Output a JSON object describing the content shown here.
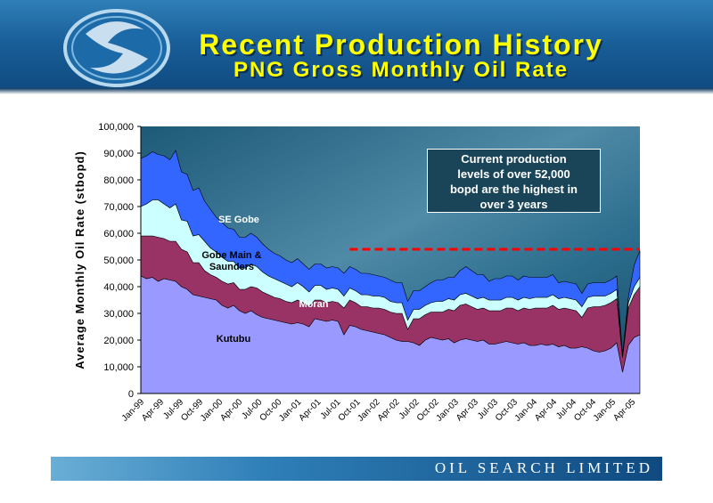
{
  "header": {
    "title": "Recent Production History",
    "subtitle": "PNG Gross Monthly Oil Rate"
  },
  "footer": {
    "company": "OIL SEARCH LIMITED"
  },
  "callout": {
    "lines": [
      "Current production",
      "levels of over 52,000",
      "bopd are the highest in",
      "over 3 years"
    ]
  },
  "colors": {
    "kutubu": "#9999ff",
    "moran": "#993366",
    "gobe_main": "#ccffff",
    "se_gobe": "#3366ff",
    "dashed_line": "#ff0000",
    "title": "#ffff00"
  },
  "chart_data": {
    "type": "area",
    "stacked": true,
    "title": "",
    "ylabel": "Average Monthly Oil Rate (stbopd)",
    "xlabel": "",
    "ylim": [
      0,
      100000
    ],
    "yticks": [
      "0",
      "10,000",
      "20,000",
      "30,000",
      "40,000",
      "50,000",
      "60,000",
      "70,000",
      "80,000",
      "90,000",
      "100,000"
    ],
    "x_tick_labels": [
      "Jan-99",
      "Apr-99",
      "Jul-99",
      "Oct-99",
      "Jan-00",
      "Apr-00",
      "Jul-00",
      "Oct-00",
      "Jan-01",
      "Apr-01",
      "Jul-01",
      "Oct-01",
      "Jan-02",
      "Apr-02",
      "Jul-02",
      "Oct-02",
      "Jan-03",
      "Apr-03",
      "Jul-03",
      "Oct-03",
      "Jan-04",
      "Apr-04",
      "Jul-04",
      "Oct-04",
      "Jan-05",
      "Apr-05"
    ],
    "reference_line": {
      "y": 54000,
      "style": "dashed"
    },
    "series_labels": [
      "Kutubu",
      "Moran",
      "Gobe Main & Saunders",
      "SE Gobe"
    ],
    "series": [
      {
        "name": "Kutubu",
        "values": [
          44000,
          43000,
          43500,
          42000,
          43000,
          42500,
          42000,
          40000,
          39000,
          37000,
          36500,
          36000,
          35500,
          35000,
          33000,
          32000,
          33000,
          31000,
          30000,
          31000,
          29500,
          28500,
          28000,
          27500,
          27000,
          26500,
          26000,
          26500,
          26000,
          25000,
          28000,
          27500,
          27000,
          27500,
          27000,
          22000,
          25500,
          25000,
          24000,
          23500,
          23000,
          22500,
          22000,
          21000,
          20000,
          19500,
          19500,
          19000,
          18000,
          20000,
          21000,
          20500,
          20000,
          20500,
          19000,
          20000,
          20500,
          20000,
          19500,
          20000,
          18500,
          18500,
          19000,
          19500,
          19000,
          18500,
          19000,
          18000,
          18000,
          18500,
          18000,
          18500,
          17500,
          18000,
          17000,
          17000,
          17500,
          17000,
          16000,
          15500,
          16000,
          17000,
          19000,
          8000,
          18000,
          21000,
          22000
        ]
      },
      {
        "name": "Moran",
        "values": [
          15000,
          16000,
          15500,
          16500,
          15000,
          14500,
          15000,
          14000,
          14000,
          12000,
          12500,
          10000,
          9000,
          8500,
          9000,
          9000,
          8500,
          8000,
          9000,
          9000,
          10000,
          9500,
          9000,
          8500,
          8500,
          8000,
          8000,
          8500,
          8000,
          7500,
          7000,
          7500,
          7000,
          7000,
          7000,
          10000,
          9500,
          9000,
          8500,
          9000,
          9000,
          9500,
          9500,
          9500,
          10000,
          10500,
          4500,
          9000,
          10000,
          9500,
          9500,
          10000,
          10500,
          11000,
          12000,
          13000,
          13000,
          12500,
          12000,
          12000,
          12500,
          12500,
          12000,
          12500,
          13000,
          12500,
          13000,
          13500,
          14000,
          13500,
          14000,
          14500,
          14000,
          14000,
          14500,
          14000,
          11000,
          15000,
          16500,
          17000,
          17000,
          17000,
          16500,
          5500,
          14000,
          16000,
          18000
        ]
      },
      {
        "name": "Gobe Main & Saunders",
        "values": [
          11000,
          12000,
          13500,
          14000,
          13000,
          12500,
          14000,
          11000,
          11500,
          10000,
          10500,
          11000,
          10000,
          9500,
          9000,
          8500,
          8000,
          8000,
          8000,
          8500,
          8000,
          7500,
          7000,
          7000,
          6500,
          6500,
          6000,
          6500,
          6000,
          5500,
          5500,
          5500,
          5000,
          5000,
          5000,
          4500,
          4500,
          4500,
          4500,
          4500,
          4500,
          4500,
          4500,
          4000,
          4000,
          4000,
          3500,
          3500,
          3500,
          3500,
          3500,
          4000,
          4000,
          4000,
          4000,
          4000,
          4000,
          4000,
          4000,
          4000,
          4000,
          4000,
          4000,
          4000,
          4000,
          4000,
          4000,
          4000,
          4000,
          4000,
          4000,
          4000,
          4000,
          4000,
          4000,
          4000,
          4000,
          4000,
          4000,
          4000,
          3500,
          3500,
          3500,
          500,
          2000,
          3000,
          3500
        ]
      },
      {
        "name": "SE Gobe",
        "values": [
          18000,
          18000,
          18000,
          17000,
          18000,
          18000,
          20000,
          18000,
          17500,
          17000,
          17500,
          15000,
          14500,
          13000,
          13000,
          12500,
          12000,
          11500,
          11500,
          11500,
          11000,
          10500,
          10000,
          9500,
          9500,
          9000,
          9000,
          9000,
          8500,
          8500,
          8000,
          8000,
          8000,
          8000,
          8000,
          8500,
          8000,
          8000,
          8000,
          8000,
          8000,
          7500,
          7500,
          8000,
          7500,
          7500,
          7000,
          7000,
          7000,
          7000,
          7500,
          8000,
          8000,
          8000,
          8500,
          9000,
          10000,
          9500,
          9000,
          8500,
          7000,
          8000,
          8000,
          8000,
          8000,
          7500,
          8000,
          8000,
          7500,
          7500,
          7500,
          7500,
          6000,
          6000,
          6000,
          6000,
          5000,
          5000,
          5000,
          5000,
          5000,
          5000,
          5000,
          500,
          2000,
          8000,
          10000
        ]
      }
    ]
  }
}
